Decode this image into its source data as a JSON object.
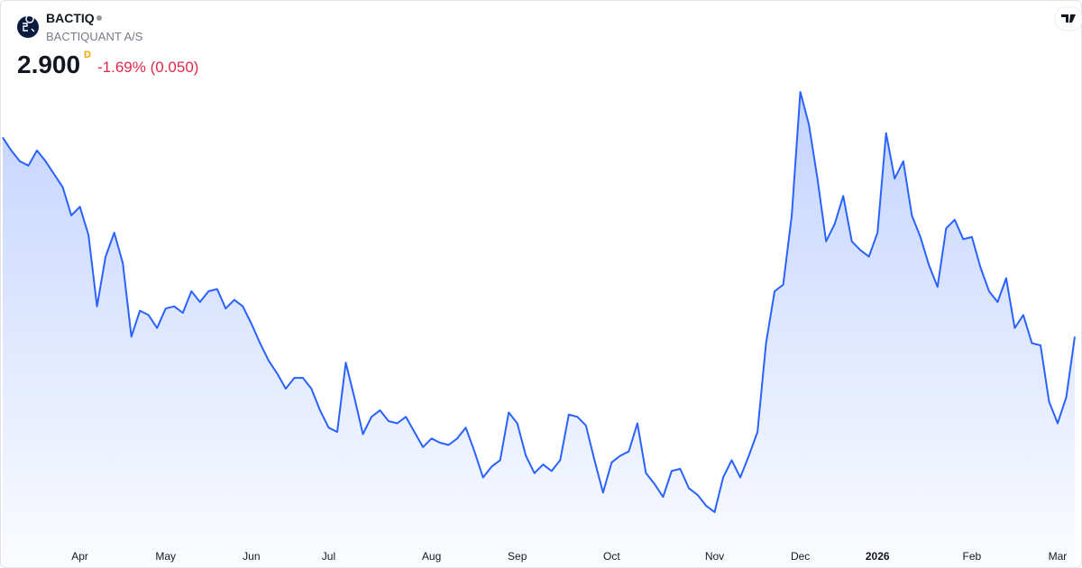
{
  "header": {
    "symbol": "BACTIQ",
    "company": "BACTIQUANT A/S",
    "price": "2.900",
    "interval": "D",
    "change": "-1.69% (0.050)"
  },
  "chart_data": {
    "type": "area",
    "color": "#2962ff",
    "categories": [
      null,
      null,
      null,
      null,
      null,
      null,
      null,
      null,
      null,
      "Apr",
      null,
      null,
      null,
      null,
      null,
      null,
      null,
      null,
      null,
      "May",
      null,
      null,
      null,
      null,
      null,
      null,
      null,
      null,
      null,
      "Jun",
      null,
      null,
      null,
      null,
      null,
      null,
      null,
      null,
      "Jul",
      null,
      null,
      null,
      null,
      null,
      null,
      null,
      null,
      null,
      null,
      null,
      "Aug",
      null,
      null,
      null,
      null,
      null,
      null,
      null,
      null,
      null,
      "Sep",
      null,
      null,
      null,
      null,
      null,
      null,
      null,
      null,
      null,
      null,
      "Oct",
      null,
      null,
      null,
      null,
      null,
      null,
      null,
      null,
      null,
      null,
      null,
      "Nov",
      null,
      null,
      null,
      null,
      null,
      null,
      null,
      null,
      null,
      "Dec",
      null,
      null,
      null,
      null,
      null,
      null,
      null,
      null,
      "2026",
      null,
      null,
      null,
      null,
      null,
      null,
      null,
      null,
      null,
      null,
      "Feb",
      null,
      null,
      null,
      null,
      null,
      null,
      null,
      null,
      null,
      "Mar",
      null,
      null
    ],
    "values": [
      3.82,
      3.76,
      3.71,
      3.69,
      3.76,
      3.71,
      3.65,
      3.59,
      3.46,
      3.5,
      3.37,
      3.04,
      3.27,
      3.38,
      3.24,
      2.9,
      3.02,
      3.0,
      2.94,
      3.03,
      3.04,
      3.01,
      3.11,
      3.06,
      3.11,
      3.12,
      3.03,
      3.07,
      3.04,
      2.96,
      2.87,
      2.79,
      2.73,
      2.66,
      2.71,
      2.71,
      2.66,
      2.56,
      2.48,
      2.46,
      2.78,
      2.62,
      2.45,
      2.53,
      2.56,
      2.51,
      2.5,
      2.53,
      2.46,
      2.39,
      2.43,
      2.41,
      2.4,
      2.43,
      2.48,
      2.37,
      2.25,
      2.3,
      2.33,
      2.55,
      2.5,
      2.35,
      2.27,
      2.31,
      2.28,
      2.33,
      2.54,
      2.53,
      2.49,
      2.33,
      2.18,
      2.32,
      2.35,
      2.37,
      2.5,
      2.27,
      2.22,
      2.16,
      2.28,
      2.29,
      2.2,
      2.17,
      2.12,
      2.09,
      2.25,
      2.33,
      2.25,
      2.35,
      2.46,
      2.87,
      3.11,
      3.14,
      3.46,
      4.03,
      3.88,
      3.63,
      3.34,
      3.42,
      3.55,
      3.34,
      3.3,
      3.27,
      3.38,
      3.84,
      3.63,
      3.71,
      3.46,
      3.36,
      3.23,
      3.13,
      3.4,
      3.44,
      3.35,
      3.36,
      3.22,
      3.11,
      3.06,
      3.17,
      2.94,
      3.0,
      2.87,
      2.86,
      2.6,
      2.5,
      2.62,
      2.9
    ]
  }
}
